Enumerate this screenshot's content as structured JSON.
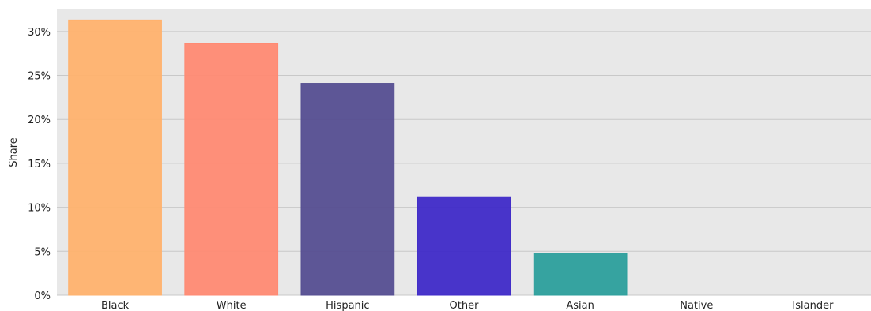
{
  "chart_data": {
    "type": "bar",
    "title": "",
    "xlabel": "",
    "ylabel": "Share",
    "categories": [
      "Black",
      "White",
      "Hispanic",
      "Other",
      "Asian",
      "Native",
      "Islander"
    ],
    "values": [
      31.3,
      28.6,
      24.1,
      11.2,
      4.8,
      0,
      0
    ],
    "colors": [
      "#ffb26e",
      "#ff8a73",
      "#554e91",
      "#3f2ac8",
      "#2c9f9c",
      "#cccccc",
      "#cccccc"
    ],
    "ylim": [
      0,
      32.5
    ],
    "yticks": [
      0,
      5,
      10,
      15,
      20,
      25,
      30
    ],
    "ytick_labels": [
      "0%",
      "5%",
      "10%",
      "15%",
      "20%",
      "25%",
      "30%"
    ],
    "grid": true,
    "legend": "none",
    "background": "#e8e8e8"
  }
}
